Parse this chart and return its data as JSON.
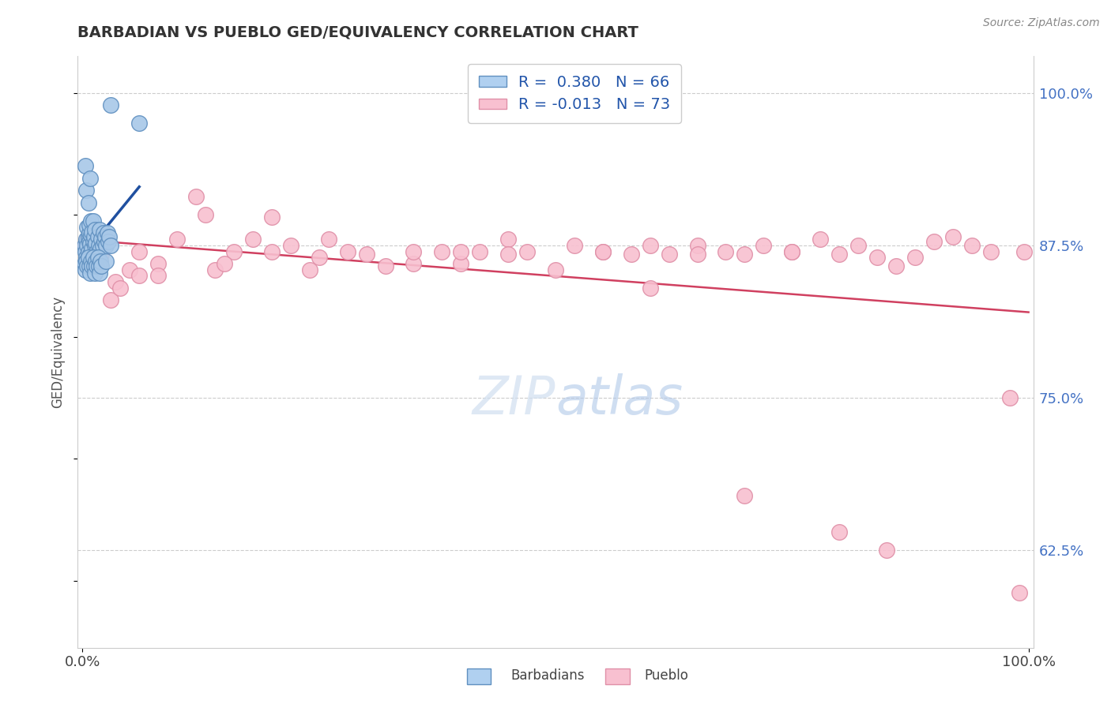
{
  "title": "BARBADIAN VS PUEBLO GED/EQUIVALENCY CORRELATION CHART",
  "source": "Source: ZipAtlas.com",
  "ylabel": "GED/Equivalency",
  "ytick_labels": [
    "62.5%",
    "75.0%",
    "87.5%",
    "100.0%"
  ],
  "ytick_values": [
    0.625,
    0.75,
    0.875,
    1.0
  ],
  "ymin": 0.545,
  "ymax": 1.03,
  "xmin": -0.005,
  "xmax": 1.005,
  "blue_R": 0.38,
  "blue_N": 66,
  "pink_R": -0.013,
  "pink_N": 73,
  "blue_color": "#a8c8e8",
  "blue_edge": "#6090c0",
  "pink_color": "#f8c0d0",
  "pink_edge": "#e090a8",
  "trend_blue": "#2050a0",
  "trend_pink": "#d04060",
  "legend_blue_fill": "#b0d0f0",
  "legend_pink_fill": "#f8c0d0",
  "blue_dots_x": [
    0.002,
    0.003,
    0.004,
    0.004,
    0.005,
    0.005,
    0.006,
    0.006,
    0.007,
    0.007,
    0.007,
    0.008,
    0.008,
    0.009,
    0.009,
    0.01,
    0.01,
    0.011,
    0.011,
    0.012,
    0.012,
    0.013,
    0.013,
    0.014,
    0.014,
    0.015,
    0.016,
    0.017,
    0.018,
    0.019,
    0.02,
    0.021,
    0.022,
    0.023,
    0.024,
    0.025,
    0.026,
    0.027,
    0.028,
    0.03,
    0.002,
    0.003,
    0.004,
    0.005,
    0.006,
    0.007,
    0.008,
    0.009,
    0.01,
    0.011,
    0.012,
    0.013,
    0.014,
    0.015,
    0.016,
    0.017,
    0.018,
    0.019,
    0.02,
    0.025,
    0.003,
    0.004,
    0.006,
    0.008,
    0.03,
    0.06
  ],
  "blue_dots_y": [
    0.875,
    0.87,
    0.88,
    0.865,
    0.875,
    0.89,
    0.882,
    0.87,
    0.878,
    0.885,
    0.892,
    0.868,
    0.876,
    0.883,
    0.895,
    0.872,
    0.886,
    0.878,
    0.895,
    0.868,
    0.882,
    0.875,
    0.888,
    0.863,
    0.877,
    0.87,
    0.882,
    0.875,
    0.888,
    0.872,
    0.88,
    0.875,
    0.885,
    0.878,
    0.882,
    0.875,
    0.885,
    0.878,
    0.882,
    0.875,
    0.86,
    0.855,
    0.862,
    0.858,
    0.865,
    0.858,
    0.852,
    0.862,
    0.858,
    0.865,
    0.858,
    0.852,
    0.862,
    0.858,
    0.865,
    0.858,
    0.852,
    0.862,
    0.858,
    0.862,
    0.94,
    0.92,
    0.91,
    0.93,
    0.99,
    0.975
  ],
  "pink_dots_x": [
    0.003,
    0.005,
    0.008,
    0.01,
    0.012,
    0.015,
    0.018,
    0.02,
    0.025,
    0.03,
    0.035,
    0.04,
    0.05,
    0.06,
    0.08,
    0.1,
    0.12,
    0.14,
    0.16,
    0.18,
    0.2,
    0.22,
    0.24,
    0.26,
    0.28,
    0.3,
    0.32,
    0.35,
    0.38,
    0.4,
    0.42,
    0.45,
    0.47,
    0.5,
    0.52,
    0.55,
    0.58,
    0.6,
    0.62,
    0.65,
    0.68,
    0.7,
    0.72,
    0.75,
    0.78,
    0.8,
    0.82,
    0.84,
    0.86,
    0.88,
    0.9,
    0.92,
    0.94,
    0.96,
    0.98,
    0.99,
    0.995,
    0.06,
    0.08,
    0.15,
    0.25,
    0.35,
    0.45,
    0.55,
    0.65,
    0.75,
    0.13,
    0.2,
    0.4,
    0.6,
    0.7,
    0.8,
    0.85
  ],
  "pink_dots_y": [
    0.875,
    0.88,
    0.878,
    0.865,
    0.882,
    0.87,
    0.875,
    0.868,
    0.878,
    0.83,
    0.845,
    0.84,
    0.855,
    0.85,
    0.86,
    0.88,
    0.915,
    0.855,
    0.87,
    0.88,
    0.87,
    0.875,
    0.855,
    0.88,
    0.87,
    0.868,
    0.858,
    0.86,
    0.87,
    0.86,
    0.87,
    0.88,
    0.87,
    0.855,
    0.875,
    0.87,
    0.868,
    0.875,
    0.868,
    0.875,
    0.87,
    0.868,
    0.875,
    0.87,
    0.88,
    0.868,
    0.875,
    0.865,
    0.858,
    0.865,
    0.878,
    0.882,
    0.875,
    0.87,
    0.75,
    0.59,
    0.87,
    0.87,
    0.85,
    0.86,
    0.865,
    0.87,
    0.868,
    0.87,
    0.868,
    0.87,
    0.9,
    0.898,
    0.87,
    0.84,
    0.67,
    0.64,
    0.625
  ]
}
